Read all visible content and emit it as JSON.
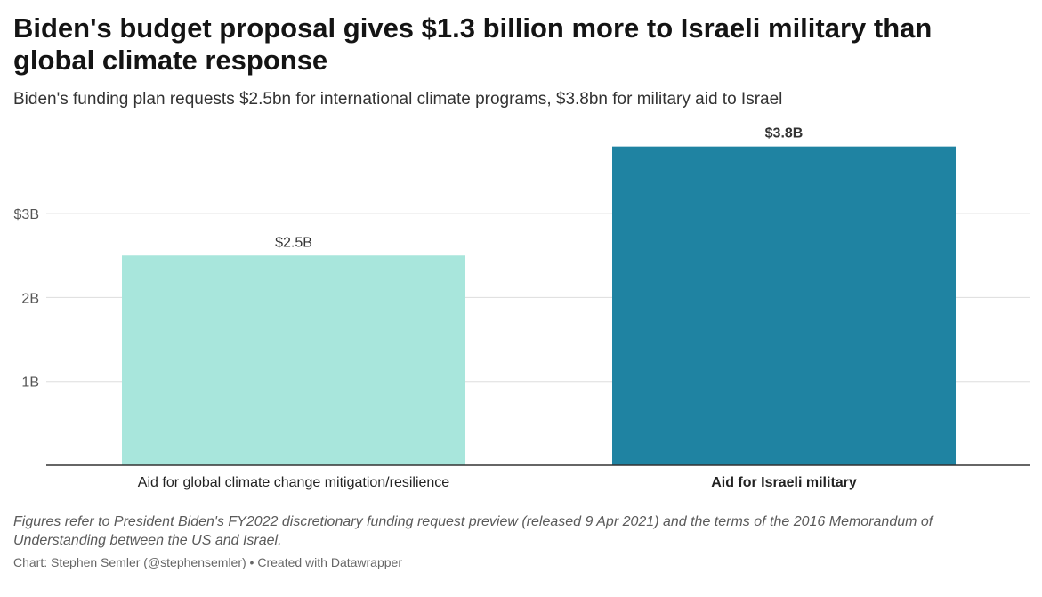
{
  "header": {
    "title": "Biden's budget proposal gives $1.3 billion more to Israeli military than global climate response",
    "subtitle": "Biden's funding plan requests $2.5bn for international climate programs, $3.8bn for military aid to Israel"
  },
  "chart_data": {
    "type": "bar",
    "categories": [
      "Aid for global climate change mitigation/resilience",
      "Aid for Israeli military"
    ],
    "values": [
      2.5,
      3.8
    ],
    "value_labels": [
      "$2.5B",
      "$3.8B"
    ],
    "bar_colors": [
      "#a8e6dc",
      "#1f83a2"
    ],
    "category_bold": [
      false,
      true
    ],
    "value_label_bold": [
      false,
      true
    ],
    "y_ticks": [
      {
        "value": 1,
        "label": "1B"
      },
      {
        "value": 2,
        "label": "2B"
      },
      {
        "value": 3,
        "label": "$3B"
      }
    ],
    "ylim": [
      0,
      3.8
    ],
    "grid": true
  },
  "footer": {
    "notes": "Figures refer to President Biden's FY2022 discretionary funding request preview (released 9 Apr 2021) and the terms of the 2016 Memorandum of Understanding between the US and Israel.",
    "byline_chart": "Chart: Stephen Semler (@stephensemler)",
    "byline_separator": " • ",
    "byline_tool": "Created with Datawrapper"
  },
  "colors": {
    "gridline": "#dddddd",
    "baseline": "#333333",
    "tick_text": "#555555"
  }
}
